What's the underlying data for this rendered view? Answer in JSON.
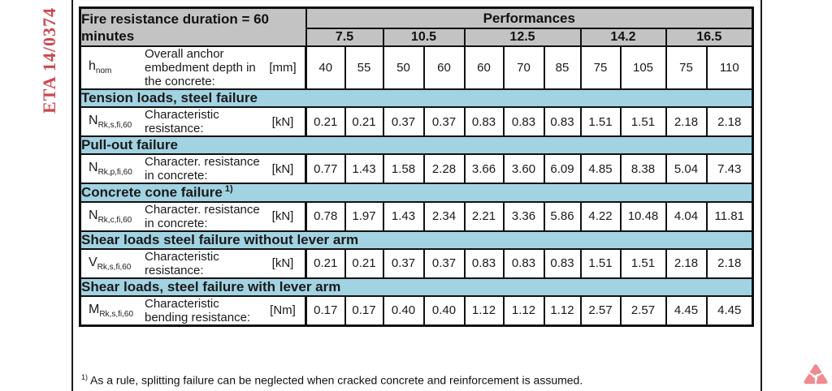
{
  "page": {
    "side_label": "ETA 14/0374",
    "footnote_sup": "1)",
    "footnote_text": "As a rule, splitting failure can be neglected when cracked concrete and reinforcement is assumed.",
    "colors": {
      "header_gray": "#c3c3c3",
      "section_blue": "#a2d3e2",
      "border_black": "#111111",
      "eta_red": "#cb4a52",
      "logo_pink": "#f08a90"
    }
  },
  "table": {
    "title": "Fire resistance duration = 60 minutes",
    "performances_label": "Performances",
    "groups": [
      {
        "label": "7.5",
        "span": 2
      },
      {
        "label": "10.5",
        "span": 2
      },
      {
        "label": "12.5",
        "span": 3
      },
      {
        "label": "14.2",
        "span": 2
      },
      {
        "label": "16.5",
        "span": 2
      }
    ],
    "body": [
      {
        "type": "row",
        "sym": "h",
        "sub": "nom",
        "desc": "Overall anchor embedment depth in the concrete:",
        "unit": "[mm]",
        "values": [
          "40",
          "55",
          "50",
          "60",
          "60",
          "70",
          "85",
          "75",
          "105",
          "75",
          "110"
        ]
      },
      {
        "type": "section",
        "label": "Tension loads, steel failure"
      },
      {
        "type": "row",
        "sym": "N",
        "sub": "Rk,s,fi,60",
        "desc": "Characteristic resistance:",
        "unit": "[kN]",
        "values": [
          "0.21",
          "0.21",
          "0.37",
          "0.37",
          "0.83",
          "0.83",
          "0.83",
          "1.51",
          "1.51",
          "2.18",
          "2.18"
        ]
      },
      {
        "type": "section",
        "label": "Pull-out failure"
      },
      {
        "type": "row",
        "sym": "N",
        "sub": "Rk,p,fi,60",
        "desc": "Character. resistance in concrete:",
        "unit": "[kN]",
        "values": [
          "0.77",
          "1.43",
          "1.58",
          "2.28",
          "3.66",
          "3.60",
          "6.09",
          "4.85",
          "8.38",
          "5.04",
          "7.43"
        ]
      },
      {
        "type": "section",
        "label": "Concrete cone failure",
        "sup": "1)"
      },
      {
        "type": "row",
        "sym": "N",
        "sub": "Rk,c,fi,60",
        "desc": "Character. resistance in concrete:",
        "unit": "[kN]",
        "values": [
          "0.78",
          "1.97",
          "1.43",
          "2.34",
          "2.21",
          "3.36",
          "5.86",
          "4.22",
          "10.48",
          "4.04",
          "11.81"
        ]
      },
      {
        "type": "section",
        "label": "Shear loads steel failure without lever arm"
      },
      {
        "type": "row",
        "sym": "V",
        "sub": "Rk,s,fi,60",
        "desc": "Characteristic resistance:",
        "unit": "[kN]",
        "values": [
          "0.21",
          "0.21",
          "0.37",
          "0.37",
          "0.83",
          "0.83",
          "0.83",
          "1.51",
          "1.51",
          "2.18",
          "2.18"
        ]
      },
      {
        "type": "section",
        "label": "Shear loads, steel failure with lever arm"
      },
      {
        "type": "row",
        "sym": "M",
        "sub": "Rk,s,fi,60",
        "desc": "Characteristic bending resistance:",
        "unit": "[Nm]",
        "values": [
          "0.17",
          "0.17",
          "0.40",
          "0.40",
          "1.12",
          "1.12",
          "1.12",
          "2.57",
          "2.57",
          "4.45",
          "4.45"
        ]
      }
    ]
  }
}
